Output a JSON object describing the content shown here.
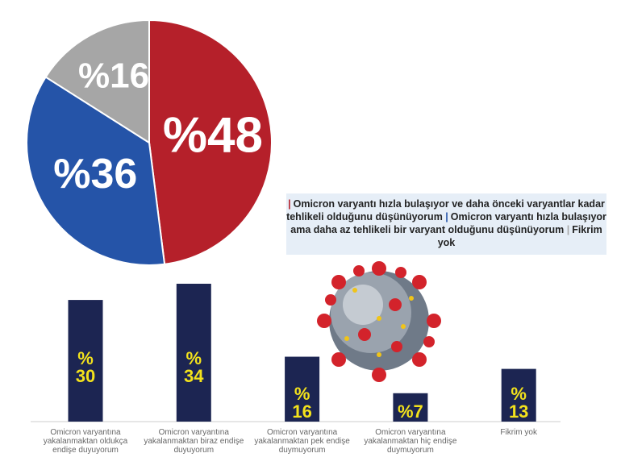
{
  "chart_data": [
    {
      "type": "pie",
      "series": [
        {
          "name": "Omicron varyantı hızla bulaşıyor ve daha önceki varyantlar kadar tehlikeli olduğunu düşünüyorum",
          "color": "#b5202a",
          "values": [
            48
          ],
          "value_labels": [
            "%48"
          ]
        },
        {
          "name": "Omicron varyantı hızla bulaşıyor ama daha az tehlikeli bir varyant olduğunu düşünüyorum",
          "color": "#2554a8",
          "values": [
            36
          ],
          "value_labels": [
            "%36"
          ]
        },
        {
          "name": "Fikrim yok",
          "color": "#a6a6a6",
          "values": [
            16
          ],
          "value_labels": [
            "%16"
          ]
        }
      ]
    },
    {
      "type": "bar",
      "categories": [
        "Omicron varyantına yakalanmaktan oldukça endişe duyuyorum",
        "Omicron varyantına yakalanmaktan biraz endişe duyuyorum",
        "Omicron varyantına yakalanmaktan pek endişe duymuyorum",
        "Omicron varyantına yakalanmaktan hiç endişe duymuyorum",
        "Fikrim yok"
      ],
      "values": [
        30,
        34,
        16,
        7,
        13
      ],
      "value_labels": [
        "% 30",
        "% 34",
        "% 16",
        "%7",
        "% 13"
      ],
      "color": "#1c2552",
      "label_color": "#f3e21c"
    }
  ]
}
